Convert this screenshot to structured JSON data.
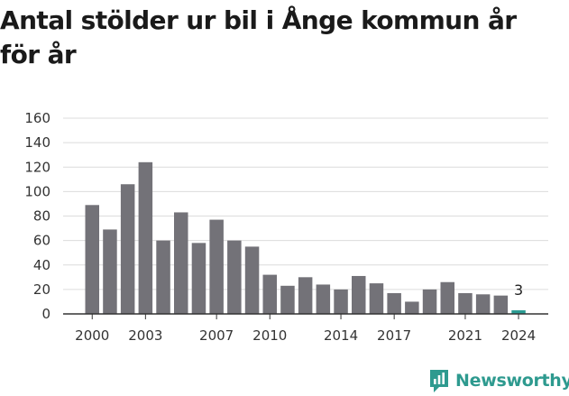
{
  "title": "Antal stölder ur bil i Ånge kommun år för år",
  "brand": {
    "name": "Newsworthy",
    "color": "#2e9a8f"
  },
  "colors": {
    "bar": "#737278",
    "highlight": "#2b9c93",
    "grid": "#dcdcdc",
    "axis": "#333333"
  },
  "chart_data": {
    "type": "bar",
    "title": "Antal stölder ur bil i Ånge kommun år för år",
    "xlabel": "",
    "ylabel": "",
    "categories": [
      "2000",
      "2001",
      "2002",
      "2003",
      "2004",
      "2005",
      "2006",
      "2007",
      "2008",
      "2009",
      "2010",
      "2011",
      "2012",
      "2013",
      "2014",
      "2015",
      "2016",
      "2017",
      "2018",
      "2019",
      "2020",
      "2021",
      "2022",
      "2023",
      "2024"
    ],
    "values": [
      89,
      69,
      106,
      124,
      60,
      83,
      58,
      77,
      60,
      55,
      32,
      23,
      30,
      24,
      20,
      31,
      25,
      17,
      10,
      20,
      26,
      17,
      16,
      15,
      3
    ],
    "x_tick_labels": [
      "2000",
      "2003",
      "2007",
      "2010",
      "2014",
      "2017",
      "2021",
      "2024"
    ],
    "y_ticks": [
      0,
      20,
      40,
      60,
      80,
      100,
      120,
      140,
      160
    ],
    "ylim": [
      0,
      160
    ],
    "grid": true,
    "highlight_category": "2024",
    "data_labels": [
      {
        "category": "2024",
        "text": "3"
      }
    ]
  }
}
